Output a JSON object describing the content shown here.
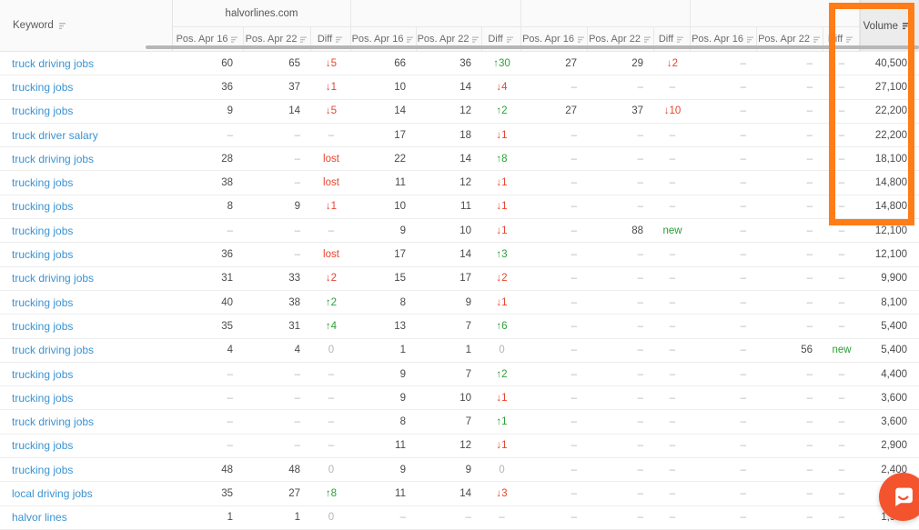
{
  "table": {
    "keyword_header": {
      "label": "Keyword",
      "icon": "sort-icon"
    },
    "groups": [
      {
        "label": "halvorlines.com",
        "columns": [
          "Pos. Apr 16",
          "Pos. Apr 22",
          "Diff"
        ]
      },
      {
        "label": "",
        "columns": [
          "Pos. Apr 16",
          "Pos. Apr 22",
          "Diff"
        ]
      },
      {
        "label": "",
        "columns": [
          "Pos. Apr 16",
          "Pos. Apr 22",
          "Diff"
        ]
      },
      {
        "label": "",
        "columns": [
          "Pos. Apr 16",
          "Pos. Apr 22",
          "Diff"
        ]
      }
    ],
    "volume_header": {
      "label": "Volume",
      "icon": "sort-descending-icon",
      "sorted": "descending"
    },
    "rows": [
      [
        "truck driving jobs",
        "60",
        "65",
        "↓5",
        "66",
        "36",
        "↑30",
        "27",
        "29",
        "↓2",
        "–",
        "–",
        "–",
        "40,500"
      ],
      [
        "trucking jobs",
        "36",
        "37",
        "↓1",
        "10",
        "14",
        "↓4",
        "–",
        "–",
        "–",
        "–",
        "–",
        "–",
        "27,100"
      ],
      [
        "trucking jobs",
        "9",
        "14",
        "↓5",
        "14",
        "12",
        "↑2",
        "27",
        "37",
        "↓10",
        "–",
        "–",
        "–",
        "22,200"
      ],
      [
        "truck driver salary",
        "–",
        "–",
        "–",
        "17",
        "18",
        "↓1",
        "–",
        "–",
        "–",
        "–",
        "–",
        "–",
        "22,200"
      ],
      [
        "truck driving jobs",
        "28",
        "–",
        "lost",
        "22",
        "14",
        "↑8",
        "–",
        "–",
        "–",
        "–",
        "–",
        "–",
        "18,100"
      ],
      [
        "trucking jobs",
        "38",
        "–",
        "lost",
        "11",
        "12",
        "↓1",
        "–",
        "–",
        "–",
        "–",
        "–",
        "–",
        "14,800"
      ],
      [
        "trucking jobs",
        "8",
        "9",
        "↓1",
        "10",
        "11",
        "↓1",
        "–",
        "–",
        "–",
        "–",
        "–",
        "–",
        "14,800"
      ],
      [
        "trucking jobs",
        "–",
        "–",
        "–",
        "9",
        "10",
        "↓1",
        "–",
        "88",
        "new",
        "–",
        "–",
        "–",
        "12,100"
      ],
      [
        "trucking jobs",
        "36",
        "–",
        "lost",
        "17",
        "14",
        "↑3",
        "–",
        "–",
        "–",
        "–",
        "–",
        "–",
        "12,100"
      ],
      [
        "truck driving jobs",
        "31",
        "33",
        "↓2",
        "15",
        "17",
        "↓2",
        "–",
        "–",
        "–",
        "–",
        "–",
        "–",
        "9,900"
      ],
      [
        "trucking jobs",
        "40",
        "38",
        "↑2",
        "8",
        "9",
        "↓1",
        "–",
        "–",
        "–",
        "–",
        "–",
        "–",
        "8,100"
      ],
      [
        "trucking jobs",
        "35",
        "31",
        "↑4",
        "13",
        "7",
        "↑6",
        "–",
        "–",
        "–",
        "–",
        "–",
        "–",
        "5,400"
      ],
      [
        "truck driving jobs",
        "4",
        "4",
        "0",
        "1",
        "1",
        "0",
        "–",
        "–",
        "–",
        "–",
        "56",
        "new",
        "5,400"
      ],
      [
        "trucking jobs",
        "–",
        "–",
        "–",
        "9",
        "7",
        "↑2",
        "–",
        "–",
        "–",
        "–",
        "–",
        "–",
        "4,400"
      ],
      [
        "trucking jobs",
        "–",
        "–",
        "–",
        "9",
        "10",
        "↓1",
        "–",
        "–",
        "–",
        "–",
        "–",
        "–",
        "3,600"
      ],
      [
        "truck driving jobs",
        "–",
        "–",
        "–",
        "8",
        "7",
        "↑1",
        "–",
        "–",
        "–",
        "–",
        "–",
        "–",
        "3,600"
      ],
      [
        "trucking jobs",
        "–",
        "–",
        "–",
        "11",
        "12",
        "↓1",
        "–",
        "–",
        "–",
        "–",
        "–",
        "–",
        "2,900"
      ],
      [
        "trucking jobs",
        "48",
        "48",
        "0",
        "9",
        "9",
        "0",
        "–",
        "–",
        "–",
        "–",
        "–",
        "–",
        "2,400"
      ],
      [
        "local driving jobs",
        "35",
        "27",
        "↑8",
        "11",
        "14",
        "↓3",
        "–",
        "–",
        "–",
        "–",
        "–",
        "–",
        ""
      ],
      [
        "halvor lines",
        "1",
        "1",
        "0",
        "–",
        "–",
        "–",
        "–",
        "–",
        "–",
        "–",
        "–",
        "–",
        "1,900"
      ]
    ]
  },
  "annotation": {
    "target": "volume-column",
    "shape": "rectangle",
    "color": "#ff7c17"
  },
  "chat_widget": {
    "icon": "chat-bubble-icon",
    "color": "#f4542d"
  },
  "colors": {
    "keyword_link": "#3b93d1",
    "positive_diff": "#2ba037",
    "negative_diff": "#e8442e",
    "neutral": "#b5b5b5",
    "header_bg": "#fafafa",
    "sorted_header_bg": "#ececec"
  }
}
